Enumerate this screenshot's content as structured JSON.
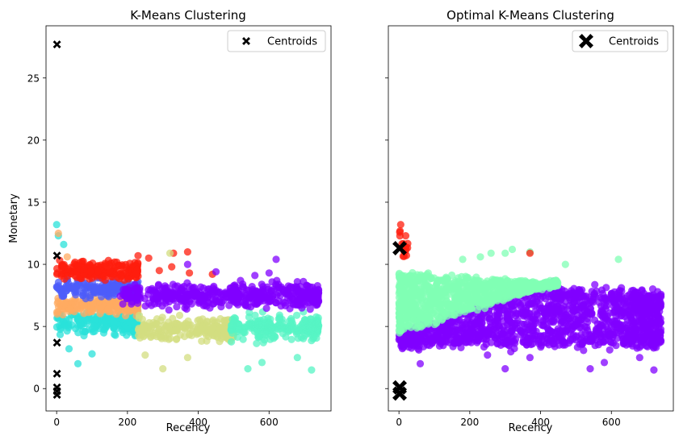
{
  "chart_data": [
    {
      "type": "scatter",
      "title": "K-Means Clustering",
      "xlabel": "Recency",
      "ylabel": "Monetary",
      "xlim": [
        -30,
        775
      ],
      "ylim": [
        -1.8,
        29.2
      ],
      "xticks": [
        0,
        200,
        400,
        600
      ],
      "yticks": [
        0,
        5,
        10,
        15,
        20,
        25
      ],
      "legend": {
        "label": "Centroids",
        "position": "top-right"
      },
      "clusters": [
        {
          "color": "#2ae2d9",
          "x_range": [
            0,
            230
          ],
          "y_center": 5.3,
          "y_spread": 0.75,
          "outliers": [
            [
              0,
              13.2
            ],
            [
              60,
              2.0
            ],
            [
              35,
              3.2
            ],
            [
              20,
              11.6
            ],
            [
              100,
              2.8
            ],
            [
              5,
              12.3
            ]
          ]
        },
        {
          "color": "#ffab61",
          "x_range": [
            0,
            230
          ],
          "y_center": 6.7,
          "y_spread": 0.55,
          "outliers": [
            [
              5,
              12.5
            ],
            [
              30,
              10.6
            ]
          ]
        },
        {
          "color": "#4c5cf9",
          "x_range": [
            0,
            230
          ],
          "y_center": 8.0,
          "y_spread": 0.6,
          "outliers": [
            [
              90,
              9.2
            ],
            [
              130,
              9.0
            ]
          ]
        },
        {
          "color": "#ff1d0e",
          "x_range": [
            0,
            230
          ],
          "y_center": 9.5,
          "y_spread": 0.55,
          "outliers": [
            [
              325,
              9.8
            ],
            [
              330,
              10.9
            ],
            [
              370,
              11.0
            ],
            [
              260,
              10.5
            ],
            [
              375,
              9.3
            ],
            [
              440,
              9.2
            ],
            [
              290,
              9.5
            ],
            [
              230,
              10.7
            ]
          ]
        },
        {
          "color": "#d3dd80",
          "x_range": [
            230,
            500
          ],
          "y_center": 4.8,
          "y_spread": 0.8,
          "outliers": [
            [
              300,
              1.6
            ],
            [
              370,
              2.5
            ],
            [
              250,
              2.7
            ],
            [
              320,
              10.9
            ]
          ]
        },
        {
          "color": "#57f4c4",
          "x_range": [
            490,
            740
          ],
          "y_center": 4.9,
          "y_spread": 0.8,
          "outliers": [
            [
              720,
              1.5
            ],
            [
              540,
              1.6
            ],
            [
              680,
              2.5
            ],
            [
              580,
              2.1
            ]
          ]
        },
        {
          "color": "#8000ff",
          "x_range": [
            180,
            740
          ],
          "y_center": 7.5,
          "y_spread": 0.75,
          "outliers": [
            [
              370,
              10.0
            ],
            [
              620,
              10.4
            ],
            [
              600,
              9.3
            ],
            [
              560,
              9.1
            ],
            [
              680,
              8.6
            ],
            [
              450,
              9.4
            ]
          ]
        }
      ],
      "centroids": [
        [
          1,
          27.7
        ],
        [
          1,
          10.7
        ],
        [
          1,
          3.7
        ],
        [
          1,
          1.2
        ],
        [
          1,
          0.1
        ],
        [
          1,
          -0.2
        ],
        [
          1,
          -0.5
        ]
      ]
    },
    {
      "type": "scatter",
      "title": "Optimal K-Means Clustering",
      "xlabel": "Recency",
      "ylabel": "",
      "xlim": [
        -30,
        775
      ],
      "ylim": [
        -1.8,
        29.2
      ],
      "xticks": [
        0,
        200,
        400,
        600
      ],
      "yticks": [
        0,
        5,
        10,
        15,
        20,
        25
      ],
      "legend": {
        "label": "Centroids",
        "position": "top-right"
      },
      "clusters": [
        {
          "color": "#80ffb4",
          "region": "upper-triangle",
          "x_range": [
            0,
            450
          ],
          "y_bounds": "above divider",
          "outliers": [
            [
              320,
              11.2
            ],
            [
              260,
              10.9
            ],
            [
              300,
              10.9
            ],
            [
              370,
              11.0
            ],
            [
              470,
              10.0
            ],
            [
              620,
              10.4
            ],
            [
              180,
              10.4
            ],
            [
              230,
              10.6
            ]
          ]
        },
        {
          "color": "#8000ff",
          "region": "lower-band",
          "x_range": [
            0,
            740
          ],
          "y_bounds": "below divider",
          "outliers": [
            [
              720,
              1.5
            ],
            [
              300,
              1.6
            ],
            [
              580,
              2.1
            ],
            [
              60,
              2.0
            ],
            [
              250,
              2.7
            ],
            [
              540,
              1.6
            ],
            [
              370,
              2.5
            ],
            [
              680,
              2.5
            ]
          ]
        },
        {
          "color": "#ff1d0e",
          "region": "top-left",
          "x_range": [
            0,
            30
          ],
          "y_bounds": "above 10.5",
          "outliers": [
            [
              5,
              13.2
            ],
            [
              370,
              10.9
            ],
            [
              20,
              11.2
            ]
          ]
        }
      ],
      "centroids": [
        [
          2,
          11.3
        ],
        [
          2,
          0.1
        ],
        [
          2,
          -0.4
        ]
      ]
    }
  ]
}
